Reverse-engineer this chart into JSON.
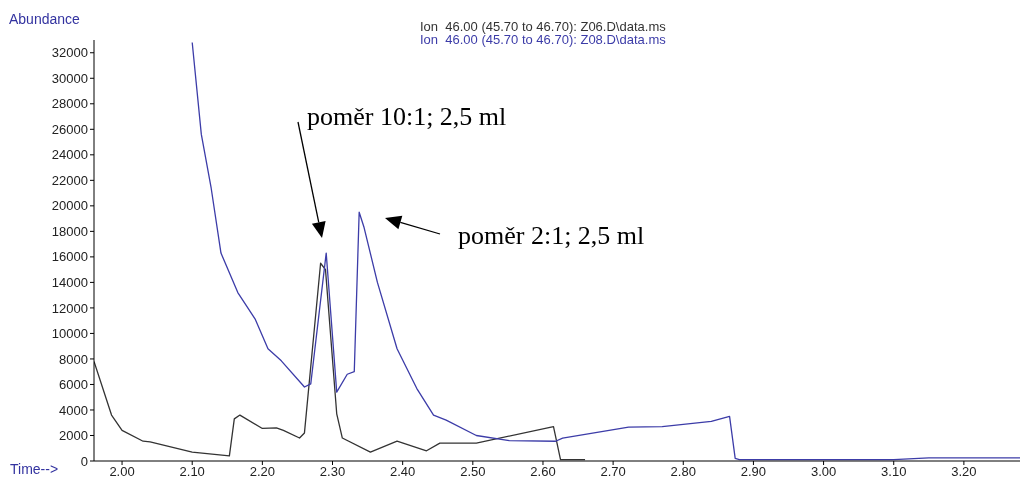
{
  "chart_data": {
    "type": "line",
    "xlabel": "Time-->",
    "ylabel": "Abundance",
    "legend": "top",
    "marker": "none",
    "line_style": "solid",
    "grid": false,
    "xlim": [
      1.96,
      3.28
    ],
    "ylim": [
      0,
      33000
    ],
    "xticks": [
      {
        "value": 2,
        "label": "2.00"
      },
      {
        "value": 2.1,
        "label": "2.10"
      },
      {
        "value": 2.2,
        "label": "2.20"
      },
      {
        "value": 2.3,
        "label": "2.30"
      },
      {
        "value": 2.4,
        "label": "2.40"
      },
      {
        "value": 2.5,
        "label": "2.50"
      },
      {
        "value": 2.6,
        "label": "2.60"
      },
      {
        "value": 2.7,
        "label": "2.70"
      },
      {
        "value": 2.8,
        "label": "2.80"
      },
      {
        "value": 2.9,
        "label": "2.90"
      },
      {
        "value": 3,
        "label": "3.00"
      },
      {
        "value": 3.1,
        "label": "3.10"
      },
      {
        "value": 3.2,
        "label": "3.20"
      }
    ],
    "yticks": [
      0,
      2000,
      4000,
      6000,
      8000,
      10000,
      12000,
      14000,
      16000,
      18000,
      20000,
      22000,
      24000,
      26000,
      28000,
      30000,
      32000
    ],
    "series": [
      {
        "name": "Ion  46.00 (45.70 to 46.70): Z06.D\\data.ms",
        "color": "#333333",
        "x": [
          1.96,
          1.985,
          2.0,
          2.03,
          2.04,
          2.1,
          2.153,
          2.16,
          2.168,
          2.2,
          2.22,
          2.23,
          2.253,
          2.26,
          2.283,
          2.29,
          2.306,
          2.314,
          2.354,
          2.392,
          2.434,
          2.453,
          2.505,
          2.615,
          2.625,
          2.66
        ],
        "values": [
          7800,
          3600,
          2400,
          1550,
          1500,
          700,
          400,
          3300,
          3600,
          2550,
          2600,
          2400,
          1800,
          2200,
          15500,
          15000,
          3700,
          1800,
          700,
          1550,
          800,
          1400,
          1400,
          2700,
          100,
          100
        ]
      },
      {
        "name": "Ion  46.00 (45.70 to 46.70): Z08.D\\data.ms",
        "color": "#3c3ca8",
        "x": [
          2.1,
          2.113,
          2.127,
          2.141,
          2.165,
          2.19,
          2.208,
          2.227,
          2.26,
          2.269,
          2.291,
          2.306,
          2.321,
          2.331,
          2.338,
          2.345,
          2.364,
          2.392,
          2.42,
          2.444,
          2.462,
          2.505,
          2.552,
          2.618,
          2.628,
          2.722,
          2.77,
          2.84,
          2.866,
          2.874,
          2.88,
          3.1,
          3.15,
          3.28
        ],
        "values": [
          32800,
          25600,
          21400,
          16300,
          13200,
          11100,
          8800,
          7850,
          5800,
          6050,
          16300,
          5400,
          6800,
          7000,
          19500,
          18300,
          14000,
          8800,
          5700,
          3600,
          3200,
          2000,
          1600,
          1550,
          1800,
          2650,
          2700,
          3100,
          3500,
          200,
          100,
          100,
          250,
          250
        ]
      }
    ],
    "annotations": [
      "poměr 10:1; 2,5 ml",
      "poměr 2:1; 2,5 ml"
    ]
  }
}
